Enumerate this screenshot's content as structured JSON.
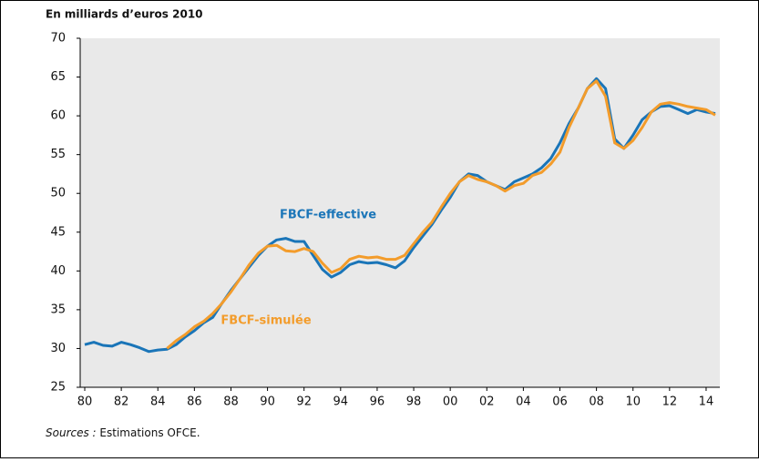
{
  "chart_data": {
    "type": "line",
    "title": "En milliards d’euros 2010",
    "source_label": "Sources :",
    "source": "Estimations OFCE.",
    "x": [
      1980,
      1980.5,
      1981,
      1981.5,
      1982,
      1982.5,
      1983,
      1983.5,
      1984,
      1984.5,
      1985,
      1985.5,
      1986,
      1986.5,
      1987,
      1987.5,
      1988,
      1988.5,
      1989,
      1989.5,
      1990,
      1990.5,
      1991,
      1991.5,
      1992,
      1992.5,
      1993,
      1993.5,
      1994,
      1994.5,
      1995,
      1995.5,
      1996,
      1996.5,
      1997,
      1997.5,
      1998,
      1998.5,
      1999,
      1999.5,
      2000,
      2000.5,
      2001,
      2001.5,
      2002,
      2002.5,
      2003,
      2003.5,
      2004,
      2004.5,
      2005,
      2005.5,
      2006,
      2006.5,
      2007,
      2007.5,
      2008,
      2008.5,
      2009,
      2009.5,
      2010,
      2010.5,
      2011,
      2011.5,
      2012,
      2012.5,
      2013,
      2013.5,
      2014,
      2014.5
    ],
    "series": [
      {
        "name": "FBCF-effective",
        "color": "#1a75b8",
        "values": [
          30.5,
          30.8,
          30.4,
          30.3,
          30.8,
          30.5,
          30.1,
          29.6,
          29.8,
          29.9,
          30.5,
          31.5,
          32.3,
          33.3,
          34.0,
          35.8,
          37.5,
          39.0,
          40.5,
          42.0,
          43.2,
          44.0,
          44.2,
          43.8,
          43.8,
          42.0,
          40.2,
          39.2,
          39.8,
          40.8,
          41.2,
          41.0,
          41.1,
          40.8,
          40.4,
          41.3,
          43.0,
          44.5,
          46.0,
          47.8,
          49.5,
          51.5,
          52.5,
          52.3,
          51.5,
          51.0,
          50.5,
          51.5,
          52.0,
          52.5,
          53.3,
          54.5,
          56.5,
          59.0,
          61.0,
          63.5,
          64.8,
          63.5,
          57.0,
          55.8,
          57.5,
          59.5,
          60.5,
          61.2,
          61.3,
          60.8,
          60.3,
          60.8,
          60.5,
          60.3
        ]
      },
      {
        "name": "FBCF-simulée",
        "color": "#f39c2b",
        "values": [
          null,
          null,
          null,
          null,
          null,
          null,
          null,
          null,
          null,
          30.0,
          31.0,
          31.8,
          32.8,
          33.5,
          34.5,
          35.8,
          37.3,
          39.0,
          40.8,
          42.3,
          43.2,
          43.3,
          42.6,
          42.5,
          42.9,
          42.5,
          41.0,
          39.8,
          40.3,
          41.5,
          41.9,
          41.7,
          41.8,
          41.5,
          41.5,
          42.0,
          43.5,
          45.0,
          46.3,
          48.2,
          50.0,
          51.5,
          52.3,
          51.8,
          51.5,
          51.0,
          50.3,
          51.0,
          51.3,
          52.3,
          52.7,
          53.8,
          55.3,
          58.5,
          61.0,
          63.5,
          64.5,
          62.5,
          56.5,
          55.8,
          56.8,
          58.5,
          60.5,
          61.5,
          61.7,
          61.5,
          61.2,
          61.0,
          60.8,
          60.1
        ]
      }
    ],
    "xlim": [
      1979.75,
      2014.75
    ],
    "xticks": [
      {
        "value": 1980,
        "label": "80"
      },
      {
        "value": 1982,
        "label": "82"
      },
      {
        "value": 1984,
        "label": "84"
      },
      {
        "value": 1986,
        "label": "86"
      },
      {
        "value": 1988,
        "label": "88"
      },
      {
        "value": 1990,
        "label": "90"
      },
      {
        "value": 1992,
        "label": "92"
      },
      {
        "value": 1994,
        "label": "94"
      },
      {
        "value": 1996,
        "label": "96"
      },
      {
        "value": 1998,
        "label": "98"
      },
      {
        "value": 2000,
        "label": "00"
      },
      {
        "value": 2002,
        "label": "02"
      },
      {
        "value": 2004,
        "label": "04"
      },
      {
        "value": 2006,
        "label": "06"
      },
      {
        "value": 2008,
        "label": "08"
      },
      {
        "value": 2010,
        "label": "10"
      },
      {
        "value": 2012,
        "label": "12"
      },
      {
        "value": 2014,
        "label": "14"
      }
    ],
    "ylim": [
      25,
      70
    ],
    "yticks": [
      25,
      30,
      35,
      40,
      45,
      50,
      55,
      60,
      65,
      70
    ],
    "grid": false
  }
}
